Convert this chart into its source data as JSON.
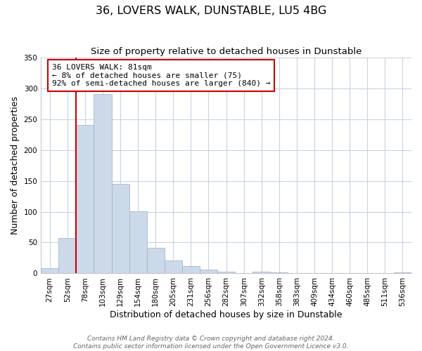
{
  "title": "36, LOVERS WALK, DUNSTABLE, LU5 4BG",
  "subtitle": "Size of property relative to detached houses in Dunstable",
  "xlabel": "Distribution of detached houses by size in Dunstable",
  "ylabel": "Number of detached properties",
  "bar_labels": [
    "27sqm",
    "52sqm",
    "78sqm",
    "103sqm",
    "129sqm",
    "154sqm",
    "180sqm",
    "205sqm",
    "231sqm",
    "256sqm",
    "282sqm",
    "307sqm",
    "332sqm",
    "358sqm",
    "383sqm",
    "409sqm",
    "434sqm",
    "460sqm",
    "485sqm",
    "511sqm",
    "536sqm"
  ],
  "bar_values": [
    8,
    57,
    240,
    290,
    145,
    101,
    42,
    21,
    12,
    6,
    3,
    0,
    3,
    2,
    0,
    0,
    0,
    0,
    0,
    0,
    2
  ],
  "bar_color": "#ccd9e8",
  "bar_edge_color": "#9ab0c8",
  "ylim": [
    0,
    350
  ],
  "yticks": [
    0,
    50,
    100,
    150,
    200,
    250,
    300,
    350
  ],
  "property_line_color": "#cc0000",
  "annotation_text": "36 LOVERS WALK: 81sqm\n← 8% of detached houses are smaller (75)\n92% of semi-detached houses are larger (840) →",
  "annotation_box_color": "#ffffff",
  "annotation_border_color": "#cc0000",
  "footer_line1": "Contains HM Land Registry data © Crown copyright and database right 2024.",
  "footer_line2": "Contains public sector information licensed under the Open Government Licence v3.0.",
  "background_color": "#ffffff",
  "grid_color": "#c8d4e0",
  "title_fontsize": 11.5,
  "subtitle_fontsize": 9.5,
  "axis_label_fontsize": 9,
  "tick_fontsize": 7.5,
  "footer_fontsize": 6.5
}
